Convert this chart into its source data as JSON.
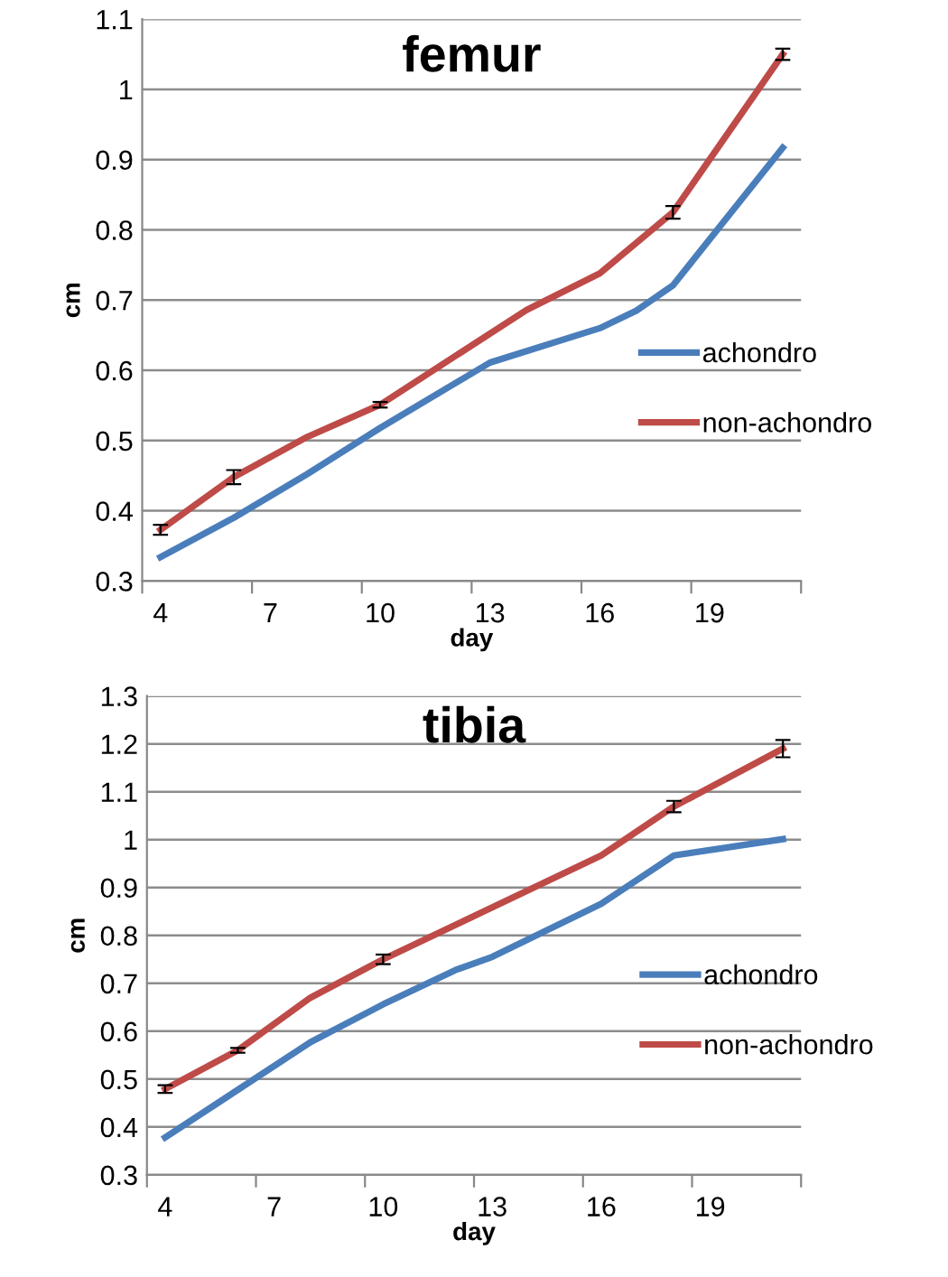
{
  "chart_data": [
    {
      "type": "line",
      "title": "femur",
      "xlabel": "day",
      "ylabel": "cm",
      "xlim": [
        3.5,
        21.5
      ],
      "ylim": [
        0.3,
        1.1
      ],
      "xticks": [
        {
          "value": 3.5,
          "label": null
        },
        4,
        {
          "value": 6.5,
          "label": null
        },
        7,
        {
          "value": 9.5,
          "label": null
        },
        10,
        {
          "value": 12.5,
          "label": null
        },
        13,
        {
          "value": 15.5,
          "label": null
        },
        16,
        {
          "value": 18.5,
          "label": null
        },
        19,
        {
          "value": 21.5,
          "label": null
        }
      ],
      "yticks": [
        0.3,
        0.4,
        0.5,
        0.6,
        0.7,
        0.8,
        0.9,
        1,
        1.1
      ],
      "grid": "y",
      "legend": "right",
      "series": [
        {
          "name": "achondro",
          "color": "#4a7ebb",
          "x": [
            4,
            6,
            8,
            10,
            13,
            16,
            17,
            18,
            21
          ],
          "values": [
            0.334,
            0.39,
            0.452,
            0.518,
            0.611,
            0.66,
            0.685,
            0.721,
            0.917
          ]
        },
        {
          "name": "non-achondro",
          "color": "#be4b48",
          "x": [
            4,
            6,
            8,
            10,
            14,
            16,
            18,
            21
          ],
          "values": [
            0.373,
            0.448,
            0.505,
            0.551,
            0.686,
            0.738,
            0.825,
            1.05
          ],
          "errors": [
            0.007,
            0.01,
            null,
            0.004,
            null,
            null,
            0.009,
            0.008
          ]
        }
      ]
    },
    {
      "type": "line",
      "title": "tibia",
      "xlabel": "day",
      "ylabel": "cm",
      "xlim": [
        3.5,
        21.5
      ],
      "ylim": [
        0.3,
        1.3
      ],
      "xticks": [
        {
          "value": 3.5,
          "label": null
        },
        4,
        {
          "value": 6.5,
          "label": null
        },
        7,
        {
          "value": 9.5,
          "label": null
        },
        10,
        {
          "value": 12.5,
          "label": null
        },
        13,
        {
          "value": 15.5,
          "label": null
        },
        16,
        {
          "value": 18.5,
          "label": null
        },
        19,
        {
          "value": 21.5,
          "label": null
        }
      ],
      "yticks": [
        0.3,
        0.4,
        0.5,
        0.6,
        0.7,
        0.8,
        0.9,
        1,
        1.1,
        1.2,
        1.3
      ],
      "grid": "y",
      "legend": "right",
      "series": [
        {
          "name": "achondro",
          "color": "#4a7ebb",
          "x": [
            4,
            8,
            10,
            12,
            13,
            16,
            18,
            21
          ],
          "values": [
            0.378,
            0.577,
            0.656,
            0.728,
            0.755,
            0.866,
            0.967,
            1.001
          ]
        },
        {
          "name": "non-achondro",
          "color": "#be4b48",
          "x": [
            4,
            6,
            8,
            10,
            16,
            18,
            21
          ],
          "values": [
            0.479,
            0.56,
            0.67,
            0.75,
            0.967,
            1.069,
            1.19
          ],
          "errors": [
            0.008,
            0.005,
            null,
            0.01,
            null,
            0.012,
            0.018
          ]
        }
      ]
    }
  ]
}
